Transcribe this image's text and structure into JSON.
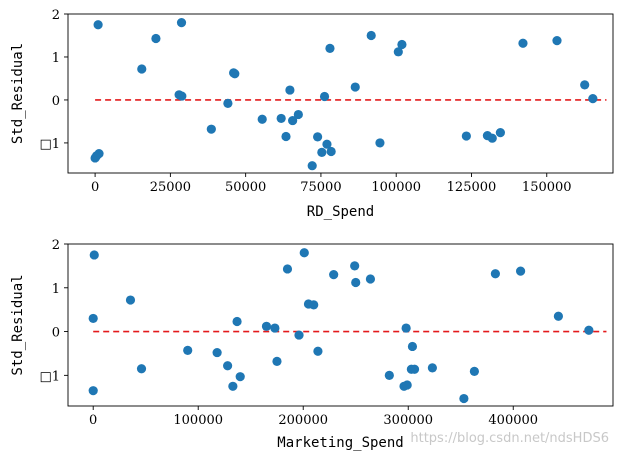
{
  "chart_data": [
    {
      "type": "scatter",
      "xlabel": "RD_Spend",
      "ylabel": "Std_Residual",
      "xlim": [
        -9000,
        172000
      ],
      "ylim": [
        -1.7,
        2.0
      ],
      "xticks": [
        0,
        25000,
        50000,
        75000,
        100000,
        125000,
        150000
      ],
      "xtick_labels": [
        "0",
        "25000",
        "50000",
        "75000",
        "100000",
        "125000",
        "150000"
      ],
      "yticks": [
        2,
        1,
        0,
        -1
      ],
      "ytick_labels": [
        "2",
        "1",
        "0",
        "□1"
      ],
      "reference_line": {
        "y": 0,
        "style": "dashed",
        "color": "#e41a1c"
      },
      "marker_color": "#1f77b4",
      "points": [
        {
          "x": 0,
          "y": -1.35
        },
        {
          "x": 500,
          "y": -1.3
        },
        {
          "x": 1000,
          "y": 1.75
        },
        {
          "x": 1300,
          "y": -1.25
        },
        {
          "x": 15500,
          "y": 0.72
        },
        {
          "x": 20200,
          "y": 1.43
        },
        {
          "x": 27900,
          "y": 0.12
        },
        {
          "x": 28700,
          "y": 1.8
        },
        {
          "x": 28800,
          "y": 0.09
        },
        {
          "x": 38600,
          "y": -0.68
        },
        {
          "x": 44100,
          "y": -0.08
        },
        {
          "x": 46000,
          "y": 0.63
        },
        {
          "x": 46400,
          "y": 0.61
        },
        {
          "x": 55500,
          "y": -0.45
        },
        {
          "x": 61800,
          "y": -0.43
        },
        {
          "x": 63400,
          "y": -0.85
        },
        {
          "x": 64700,
          "y": 0.23
        },
        {
          "x": 65600,
          "y": -0.48
        },
        {
          "x": 67500,
          "y": -0.34
        },
        {
          "x": 72100,
          "y": -1.53
        },
        {
          "x": 73900,
          "y": -0.86
        },
        {
          "x": 75300,
          "y": -1.22
        },
        {
          "x": 76200,
          "y": 0.08
        },
        {
          "x": 77000,
          "y": -1.03
        },
        {
          "x": 78000,
          "y": 1.2
        },
        {
          "x": 78400,
          "y": -1.2
        },
        {
          "x": 86400,
          "y": 0.3
        },
        {
          "x": 91700,
          "y": 1.5
        },
        {
          "x": 94600,
          "y": -1.0
        },
        {
          "x": 100700,
          "y": 1.12
        },
        {
          "x": 101900,
          "y": 1.29
        },
        {
          "x": 123300,
          "y": -0.84
        },
        {
          "x": 130300,
          "y": -0.83
        },
        {
          "x": 131900,
          "y": -0.89
        },
        {
          "x": 134600,
          "y": -0.76
        },
        {
          "x": 142100,
          "y": 1.32
        },
        {
          "x": 153400,
          "y": 1.38
        },
        {
          "x": 162600,
          "y": 0.35
        },
        {
          "x": 165300,
          "y": 0.03
        }
      ]
    },
    {
      "type": "scatter",
      "xlabel": "Marketing_Spend",
      "ylabel": "Std_Residual",
      "xlim": [
        -24000,
        495000
      ],
      "ylim": [
        -1.7,
        2.0
      ],
      "xticks": [
        0,
        100000,
        200000,
        300000,
        400000
      ],
      "xtick_labels": [
        "0",
        "100000",
        "200000",
        "300000",
        "400000"
      ],
      "yticks": [
        2,
        1,
        0,
        -1
      ],
      "ytick_labels": [
        "2",
        "1",
        "0",
        "□1"
      ],
      "reference_line": {
        "y": 0,
        "style": "dashed",
        "color": "#e41a1c"
      },
      "marker_color": "#1f77b4",
      "points": [
        {
          "x": 0,
          "y": -1.35
        },
        {
          "x": 0,
          "y": 0.3
        },
        {
          "x": 1000,
          "y": 1.75
        },
        {
          "x": 35500,
          "y": 0.72
        },
        {
          "x": 46000,
          "y": -0.85
        },
        {
          "x": 90000,
          "y": -0.43
        },
        {
          "x": 118000,
          "y": -0.48
        },
        {
          "x": 128000,
          "y": -0.78
        },
        {
          "x": 133000,
          "y": -1.25
        },
        {
          "x": 137000,
          "y": 0.23
        },
        {
          "x": 140000,
          "y": -1.03
        },
        {
          "x": 165000,
          "y": 0.12
        },
        {
          "x": 173000,
          "y": 0.08
        },
        {
          "x": 175000,
          "y": -0.68
        },
        {
          "x": 185000,
          "y": 1.43
        },
        {
          "x": 196000,
          "y": -0.08
        },
        {
          "x": 201000,
          "y": 1.8
        },
        {
          "x": 205000,
          "y": 0.63
        },
        {
          "x": 210000,
          "y": 0.61
        },
        {
          "x": 214000,
          "y": -0.45
        },
        {
          "x": 229000,
          "y": 1.3
        },
        {
          "x": 249000,
          "y": 1.5
        },
        {
          "x": 250000,
          "y": 1.12
        },
        {
          "x": 264000,
          "y": 1.2
        },
        {
          "x": 282000,
          "y": -1.0
        },
        {
          "x": 296000,
          "y": -1.25
        },
        {
          "x": 298000,
          "y": 0.08
        },
        {
          "x": 299000,
          "y": -1.22
        },
        {
          "x": 303000,
          "y": -0.86
        },
        {
          "x": 304000,
          "y": -0.34
        },
        {
          "x": 306000,
          "y": -0.86
        },
        {
          "x": 323000,
          "y": -0.83
        },
        {
          "x": 353000,
          "y": -1.53
        },
        {
          "x": 363000,
          "y": -0.91
        },
        {
          "x": 383000,
          "y": 1.32
        },
        {
          "x": 407000,
          "y": 1.38
        },
        {
          "x": 443000,
          "y": 0.35
        },
        {
          "x": 472000,
          "y": 0.03
        }
      ]
    }
  ],
  "watermark": "https://blog.csdn.net/ndsHDS6"
}
